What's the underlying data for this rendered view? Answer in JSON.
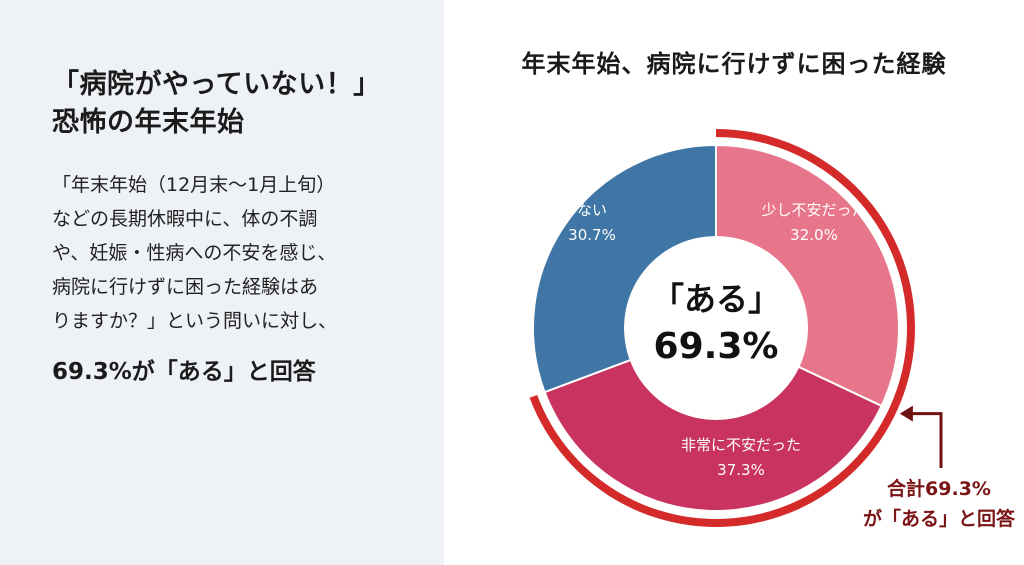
{
  "headline": [
    "「病院がやっていない！」",
    "恐怖の年末年始"
  ],
  "body_text": "「年末年始（12月末〜1月上旬）\nなどの長期休暇中に、体の不調\nや、妊娠・性病への不安を感じ、\n病院に行けずに困った経験はあ\nりますか？」という問いに対し、",
  "conclusion": "69.3%が「ある」と回答",
  "chart_data": {
    "type": "pie",
    "title": "年末年始、病院に行けずに困った経験",
    "slices": [
      {
        "label": "少し不安だった",
        "value": 32.0,
        "value_text": "32.0%",
        "color": "#e8768a"
      },
      {
        "label": "非常に不安だった",
        "value": 37.3,
        "value_text": "37.3%",
        "color": "#c8335f"
      },
      {
        "label": "ない",
        "value": 30.7,
        "value_text": "30.7%",
        "color": "#3f76a5"
      }
    ],
    "center_label": "「ある」",
    "center_value": "69.3%",
    "annotation": [
      "合計69.3%",
      "が「ある」と回答"
    ],
    "highlight_color": "#d42a2a"
  }
}
